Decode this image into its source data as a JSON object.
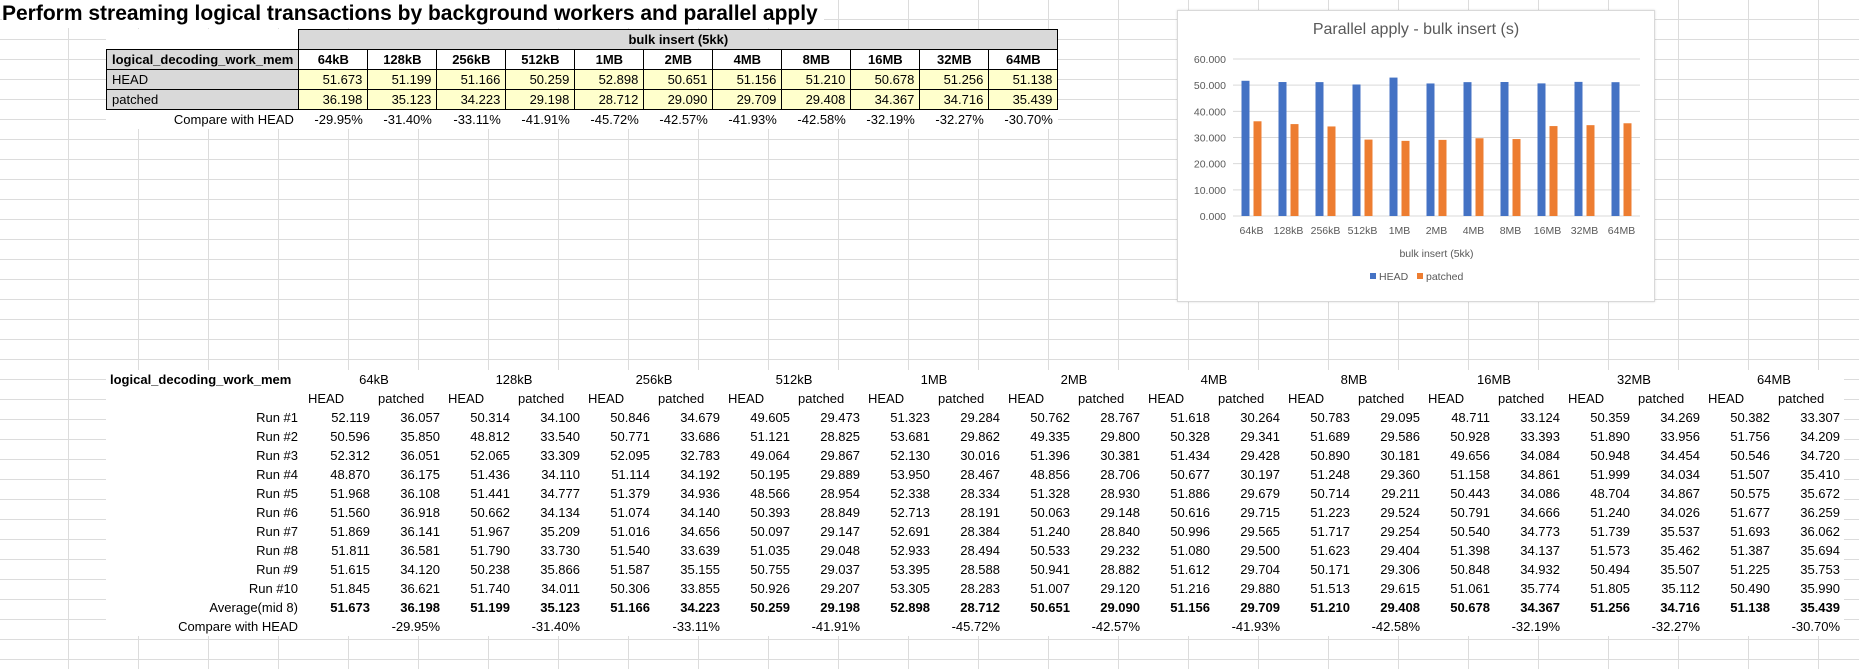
{
  "title": "Perform streaming logical transactions by background workers and parallel apply",
  "summary": {
    "group_label": "bulk insert (5kk)",
    "corner_label": "logical_decoding_work_mem",
    "columns": [
      "64kB",
      "128kB",
      "256kB",
      "512kB",
      "1MB",
      "2MB",
      "4MB",
      "8MB",
      "16MB",
      "32MB",
      "64MB"
    ],
    "rows": [
      {
        "label": "HEAD",
        "values": [
          "51.673",
          "51.199",
          "51.166",
          "50.259",
          "52.898",
          "50.651",
          "51.156",
          "51.210",
          "50.678",
          "51.256",
          "51.138"
        ]
      },
      {
        "label": "patched",
        "values": [
          "36.198",
          "35.123",
          "34.223",
          "29.198",
          "28.712",
          "29.090",
          "29.709",
          "29.408",
          "34.367",
          "34.716",
          "35.439"
        ]
      }
    ],
    "compare": {
      "label": "Compare with HEAD",
      "values": [
        "-29.95%",
        "-31.40%",
        "-33.11%",
        "-41.91%",
        "-45.72%",
        "-42.57%",
        "-41.93%",
        "-42.58%",
        "-32.19%",
        "-32.27%",
        "-30.70%"
      ]
    }
  },
  "chart_data": {
    "type": "bar",
    "title": "Parallel apply - bulk insert (s)",
    "xlabel": "bulk insert (5kk)",
    "ylabel": "",
    "ylim": [
      0,
      60
    ],
    "yticks": [
      "0.000",
      "10.000",
      "20.000",
      "30.000",
      "40.000",
      "50.000",
      "60.000"
    ],
    "categories": [
      "64kB",
      "128kB",
      "256kB",
      "512kB",
      "1MB",
      "2MB",
      "4MB",
      "8MB",
      "16MB",
      "32MB",
      "64MB"
    ],
    "series": [
      {
        "name": "HEAD",
        "color": "#4472c4",
        "values": [
          51.673,
          51.199,
          51.166,
          50.259,
          52.898,
          50.651,
          51.156,
          51.21,
          50.678,
          51.256,
          51.138
        ]
      },
      {
        "name": "patched",
        "color": "#ed7d31",
        "values": [
          36.198,
          35.123,
          34.223,
          29.198,
          28.712,
          29.09,
          29.709,
          29.408,
          34.367,
          34.716,
          35.439
        ]
      }
    ],
    "legend": "bottom",
    "grid": true
  },
  "detail": {
    "corner_label": "logical_decoding_work_mem",
    "groups": [
      "64kB",
      "128kB",
      "256kB",
      "512kB",
      "1MB",
      "2MB",
      "4MB",
      "8MB",
      "16MB",
      "32MB",
      "64MB"
    ],
    "sub_head": "HEAD",
    "sub_patched": "patched",
    "runs": [
      {
        "label": "Run #1",
        "values": [
          "52.119",
          "36.057",
          "50.314",
          "34.100",
          "50.846",
          "34.679",
          "49.605",
          "29.473",
          "51.323",
          "29.284",
          "50.762",
          "28.767",
          "51.618",
          "30.264",
          "50.783",
          "29.095",
          "48.711",
          "33.124",
          "50.359",
          "34.269",
          "50.382",
          "33.307"
        ]
      },
      {
        "label": "Run #2",
        "values": [
          "50.596",
          "35.850",
          "48.812",
          "33.540",
          "50.771",
          "33.686",
          "51.121",
          "28.825",
          "53.681",
          "29.862",
          "49.335",
          "29.800",
          "50.328",
          "29.341",
          "51.689",
          "29.586",
          "50.928",
          "33.393",
          "51.890",
          "33.956",
          "51.756",
          "34.209"
        ]
      },
      {
        "label": "Run #3",
        "values": [
          "52.312",
          "36.051",
          "52.065",
          "33.309",
          "52.095",
          "32.783",
          "49.064",
          "29.867",
          "52.130",
          "30.016",
          "51.396",
          "30.381",
          "51.434",
          "29.428",
          "50.890",
          "30.181",
          "49.656",
          "34.084",
          "50.948",
          "34.454",
          "50.546",
          "34.720"
        ]
      },
      {
        "label": "Run #4",
        "values": [
          "48.870",
          "36.175",
          "51.436",
          "34.110",
          "51.114",
          "34.192",
          "50.195",
          "29.889",
          "53.950",
          "28.467",
          "48.856",
          "28.706",
          "50.677",
          "30.197",
          "51.248",
          "29.360",
          "51.158",
          "34.861",
          "51.999",
          "34.034",
          "51.507",
          "35.410"
        ]
      },
      {
        "label": "Run #5",
        "values": [
          "51.968",
          "36.108",
          "51.441",
          "34.777",
          "51.379",
          "34.936",
          "48.566",
          "28.954",
          "52.338",
          "28.334",
          "51.328",
          "28.930",
          "51.886",
          "29.679",
          "50.714",
          "29.211",
          "50.443",
          "34.086",
          "48.704",
          "34.867",
          "50.575",
          "35.672"
        ]
      },
      {
        "label": "Run #6",
        "values": [
          "51.560",
          "36.918",
          "50.662",
          "34.134",
          "51.074",
          "34.140",
          "50.393",
          "28.849",
          "52.713",
          "28.191",
          "50.063",
          "29.148",
          "50.616",
          "29.715",
          "51.223",
          "29.524",
          "50.791",
          "34.666",
          "51.240",
          "34.026",
          "51.677",
          "36.259"
        ]
      },
      {
        "label": "Run #7",
        "values": [
          "51.869",
          "36.141",
          "51.967",
          "35.209",
          "51.016",
          "34.656",
          "50.097",
          "29.147",
          "52.691",
          "28.384",
          "51.240",
          "28.840",
          "50.996",
          "29.565",
          "51.717",
          "29.254",
          "50.540",
          "34.773",
          "51.739",
          "35.537",
          "51.693",
          "36.062"
        ]
      },
      {
        "label": "Run #8",
        "values": [
          "51.811",
          "36.581",
          "51.790",
          "33.730",
          "51.540",
          "33.639",
          "51.035",
          "29.048",
          "52.933",
          "28.494",
          "50.533",
          "29.232",
          "51.080",
          "29.500",
          "51.623",
          "29.404",
          "51.398",
          "34.137",
          "51.573",
          "35.462",
          "51.387",
          "35.694"
        ]
      },
      {
        "label": "Run #9",
        "values": [
          "51.615",
          "34.120",
          "50.238",
          "35.866",
          "51.587",
          "35.155",
          "50.755",
          "29.037",
          "53.395",
          "28.588",
          "50.941",
          "28.882",
          "51.612",
          "29.704",
          "50.171",
          "29.306",
          "50.848",
          "34.932",
          "50.494",
          "35.507",
          "51.225",
          "35.753"
        ]
      },
      {
        "label": "Run #10",
        "values": [
          "51.845",
          "36.621",
          "51.740",
          "34.011",
          "50.306",
          "33.855",
          "50.926",
          "29.207",
          "53.305",
          "28.283",
          "51.007",
          "29.120",
          "51.216",
          "29.880",
          "51.513",
          "29.615",
          "51.061",
          "35.774",
          "51.805",
          "35.112",
          "50.490",
          "35.990"
        ]
      }
    ],
    "average": {
      "label": "Average(mid 8)",
      "values": [
        "51.673",
        "36.198",
        "51.199",
        "35.123",
        "51.166",
        "34.223",
        "50.259",
        "29.198",
        "52.898",
        "28.712",
        "50.651",
        "29.090",
        "51.156",
        "29.709",
        "51.210",
        "29.408",
        "50.678",
        "34.367",
        "51.256",
        "34.716",
        "51.138",
        "35.439"
      ]
    },
    "compare": {
      "label": "Compare with HEAD",
      "values": [
        "-29.95%",
        "-31.40%",
        "-33.11%",
        "-41.91%",
        "-45.72%",
        "-42.57%",
        "-41.93%",
        "-42.58%",
        "-32.19%",
        "-32.27%",
        "-30.70%"
      ]
    }
  }
}
